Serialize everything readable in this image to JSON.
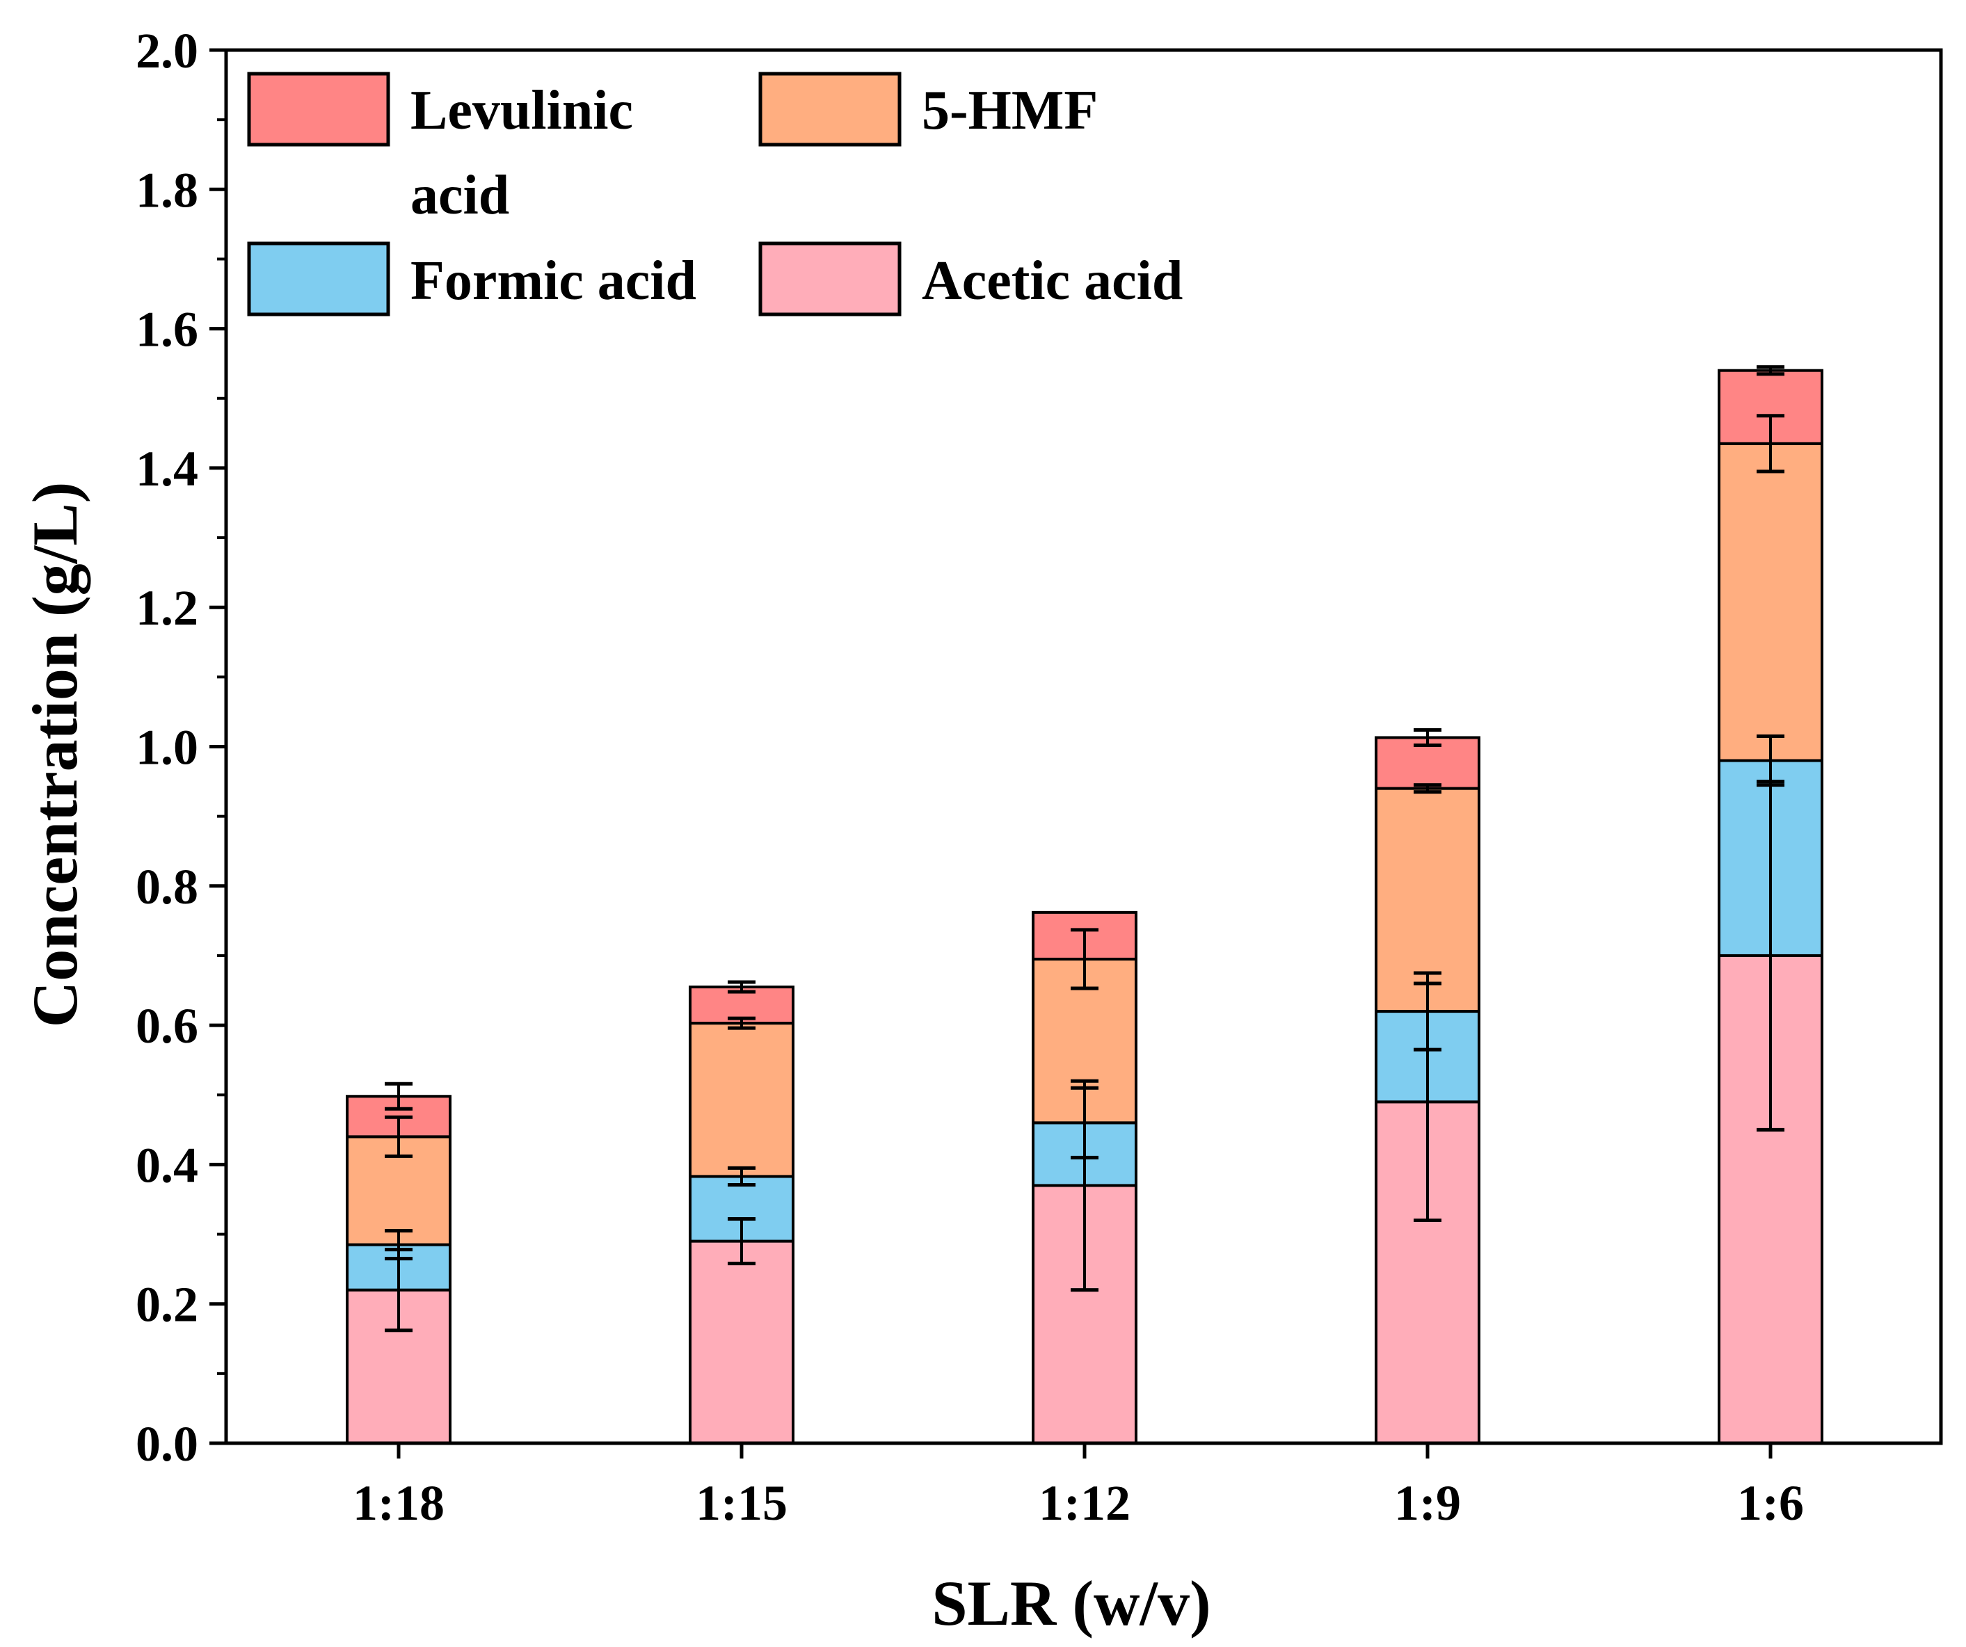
{
  "chart_data": {
    "type": "bar",
    "stacked": true,
    "title": "",
    "xlabel": "SLR (w/v)",
    "ylabel": "Concentration (g/L)",
    "ylim": [
      0,
      2.0
    ],
    "yticks": [
      "0.0",
      "0.2",
      "0.4",
      "0.6",
      "0.8",
      "1.0",
      "1.2",
      "1.4",
      "1.6",
      "1.8",
      "2.0"
    ],
    "categories": [
      "1:18",
      "1:15",
      "1:12",
      "1:9",
      "1:6"
    ],
    "series": [
      {
        "name": "Acetic acid",
        "color": "#FFADB9",
        "values": [
          0.22,
          0.29,
          0.37,
          0.49,
          0.7
        ],
        "errors": [
          0.058,
          0.032,
          0.15,
          0.17,
          0.25
        ]
      },
      {
        "name": "Formic acid",
        "color": "#7FCDF0",
        "values": [
          0.065,
          0.093,
          0.09,
          0.13,
          0.28
        ],
        "errors": [
          0.02,
          0.012,
          0.05,
          0.055,
          0.035
        ]
      },
      {
        "name": "5-HMF",
        "color": "#FFAE80",
        "values": [
          0.155,
          0.22,
          0.235,
          0.32,
          0.455
        ],
        "errors": [
          0.028,
          0.007,
          0.042,
          0.005,
          0.04
        ]
      },
      {
        "name": "Levulinic acid",
        "color": "#FF8585",
        "values": [
          0.058,
          0.052,
          0.067,
          0.073,
          0.105
        ],
        "errors": [
          0.018,
          0.007,
          0.0,
          0.011,
          0.005
        ]
      }
    ],
    "legend": {
      "position": "top-left",
      "entries": [
        {
          "label_lines": [
            "Levulinic",
            "acid"
          ],
          "color": "#FF8585"
        },
        {
          "label_lines": [
            "5-HMF"
          ],
          "color": "#FFAE80"
        },
        {
          "label_lines": [
            "Formic acid"
          ],
          "color": "#7FCDF0"
        },
        {
          "label_lines": [
            "Acetic acid"
          ],
          "color": "#FFADB9"
        }
      ]
    }
  }
}
